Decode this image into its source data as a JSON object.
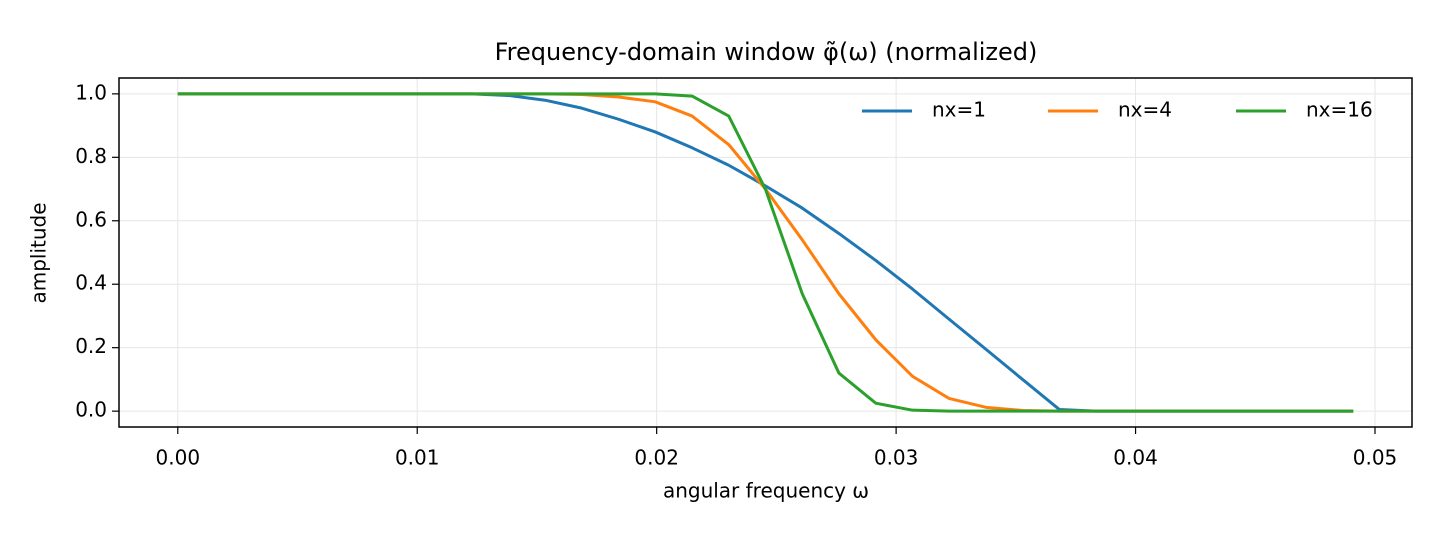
{
  "chart_data": {
    "type": "line",
    "title": "Frequency-domain window φ̃(ω) (normalized)",
    "xlabel": "angular frequency ω",
    "ylabel": "amplitude",
    "x": [
      0,
      0.00153,
      0.00307,
      0.0046,
      0.00614,
      0.00767,
      0.0092,
      0.01074,
      0.01227,
      0.01381,
      0.01534,
      0.01687,
      0.01841,
      0.01994,
      0.02148,
      0.02301,
      0.02454,
      0.02608,
      0.02761,
      0.02915,
      0.03068,
      0.03221,
      0.03375,
      0.03528,
      0.03682,
      0.03835,
      0.03988,
      0.04142,
      0.04295,
      0.04449,
      0.04602,
      0.04755,
      0.04909
    ],
    "series": [
      {
        "name": "nx=1",
        "color": "#1f77b4",
        "values": [
          1,
          1,
          1,
          1,
          1,
          1,
          1,
          1,
          1,
          0.995,
          0.98,
          0.955,
          0.92,
          0.88,
          0.83,
          0.775,
          0.71,
          0.64,
          0.56,
          0.475,
          0.385,
          0.29,
          0.195,
          0.1,
          0.005,
          0,
          0,
          0,
          0,
          0,
          0,
          0,
          0
        ]
      },
      {
        "name": "nx=4",
        "color": "#ff7f0e",
        "values": [
          1,
          1,
          1,
          1,
          1,
          1,
          1,
          1,
          1,
          1,
          1,
          0.998,
          0.99,
          0.975,
          0.93,
          0.84,
          0.7,
          0.54,
          0.37,
          0.225,
          0.11,
          0.04,
          0.012,
          0.002,
          0,
          0,
          0,
          0,
          0,
          0,
          0,
          0,
          0
        ]
      },
      {
        "name": "nx=16",
        "color": "#2ca02c",
        "values": [
          1,
          1,
          1,
          1,
          1,
          1,
          1,
          1,
          1,
          1,
          1,
          1,
          1,
          1,
          0.993,
          0.93,
          0.7,
          0.37,
          0.12,
          0.025,
          0.003,
          0,
          0,
          0,
          0,
          0,
          0,
          0,
          0,
          0,
          0,
          0,
          0
        ]
      }
    ],
    "xlim": [
      -0.002455,
      0.051545
    ],
    "ylim": [
      -0.05,
      1.05
    ],
    "xticks": [
      {
        "value": 0,
        "label": "0.00"
      },
      0.01,
      0.02,
      0.03,
      0.04,
      0.05
    ],
    "yticks": [
      {
        "value": 0,
        "label": "0.0"
      },
      0.2,
      0.4,
      0.6,
      0.8,
      {
        "value": 1,
        "label": "1.0"
      }
    ],
    "grid": true,
    "legend": "upper right"
  }
}
